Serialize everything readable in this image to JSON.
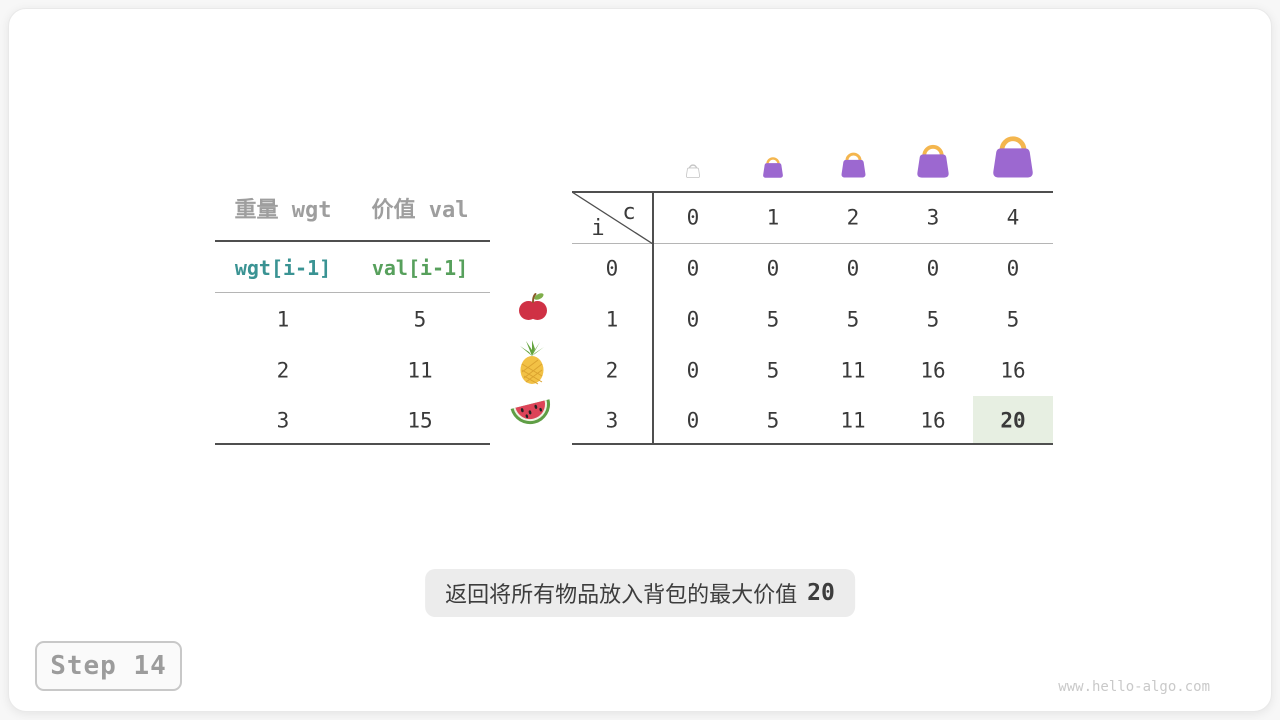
{
  "figure": {
    "caption_text": "返回将所有物品放入背包的最大价值",
    "caption_value": "20",
    "step_label": "Step 14",
    "watermark": "www.hello-algo.com"
  },
  "items_table": {
    "headers": [
      {
        "label": "重量 wgt"
      },
      {
        "label": "价值 val"
      }
    ],
    "sub_headers": [
      {
        "label": "wgt[i-1]",
        "color": "#3a9393"
      },
      {
        "label": "val[i-1]",
        "color": "#57a05c"
      }
    ],
    "rows": [
      {
        "icon": "apple-icon",
        "wgt": "1",
        "val": "5"
      },
      {
        "icon": "pineapple-icon",
        "wgt": "2",
        "val": "11"
      },
      {
        "icon": "watermelon-icon",
        "wgt": "3",
        "val": "15"
      }
    ]
  },
  "dp_table": {
    "corner": {
      "row_var": "i",
      "col_var": "c"
    },
    "col_headers": [
      "0",
      "1",
      "2",
      "3",
      "4"
    ],
    "rows": [
      {
        "label": "0",
        "cells": [
          "0",
          "0",
          "0",
          "0",
          "0"
        ]
      },
      {
        "label": "1",
        "cells": [
          "0",
          "5",
          "5",
          "5",
          "5"
        ]
      },
      {
        "label": "2",
        "cells": [
          "0",
          "5",
          "11",
          "16",
          "16"
        ]
      },
      {
        "label": "3",
        "cells": [
          "0",
          "5",
          "11",
          "16",
          "20"
        ]
      }
    ],
    "highlight": {
      "row": 3,
      "col": 4
    },
    "bag_icons": [
      "bag-outline-icon",
      "bag-icon-small",
      "bag-icon-medium",
      "bag-icon-large",
      "bag-icon-xlarge"
    ]
  },
  "colors": {
    "bag_purple": "#9c68d0",
    "bag_handle": "#f4b64e",
    "bag_outline": "#c4c4c4",
    "teal": "#3a9393",
    "green": "#57a05c",
    "highlight_green": "#e7efe2",
    "caption_bg": "#ececec",
    "rule_dark": "#4f4f4f",
    "rule_light": "#b5b5b5"
  }
}
